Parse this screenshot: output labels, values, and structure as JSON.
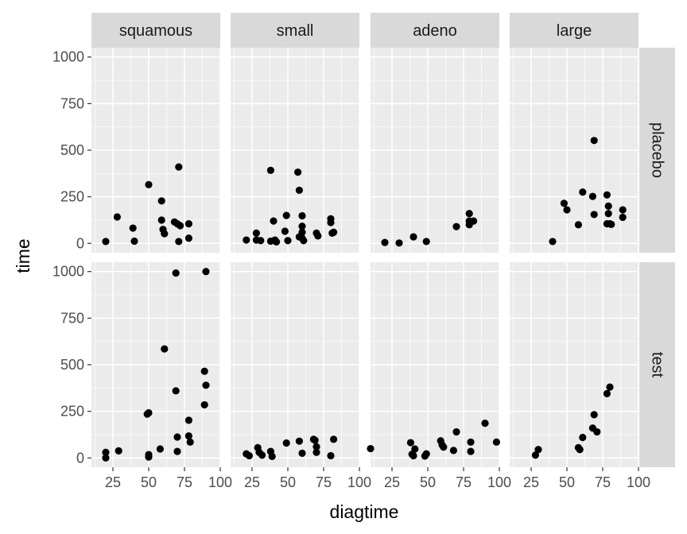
{
  "chart_data": {
    "type": "scatter",
    "xlabel": "diagtime",
    "ylabel": "time",
    "xlim": [
      10,
      100
    ],
    "ylim": [
      -50,
      1050
    ],
    "x_ticks": [
      25,
      50,
      75,
      100
    ],
    "y_ticks": [
      0,
      250,
      500,
      750,
      1000
    ],
    "grid": true,
    "colors": {
      "panel_bg": "#ebebeb",
      "strip_bg": "#d9d9d9",
      "grid": "#ffffff",
      "point": "#000000"
    },
    "column_facets": [
      "squamous",
      "small",
      "adeno",
      "large"
    ],
    "row_facets": [
      "placebo",
      "test"
    ],
    "panels": [
      {
        "col": "squamous",
        "row": "placebo",
        "points": [
          {
            "x": 20,
            "y": 10
          },
          {
            "x": 28,
            "y": 142
          },
          {
            "x": 39,
            "y": 82
          },
          {
            "x": 40,
            "y": 12
          },
          {
            "x": 50,
            "y": 315
          },
          {
            "x": 59,
            "y": 228
          },
          {
            "x": 59,
            "y": 125
          },
          {
            "x": 60,
            "y": 75
          },
          {
            "x": 61,
            "y": 52
          },
          {
            "x": 68,
            "y": 115
          },
          {
            "x": 70,
            "y": 105
          },
          {
            "x": 71,
            "y": 410
          },
          {
            "x": 71,
            "y": 10
          },
          {
            "x": 72,
            "y": 95
          },
          {
            "x": 78,
            "y": 105
          },
          {
            "x": 78,
            "y": 28
          }
        ]
      },
      {
        "col": "small",
        "row": "placebo",
        "points": [
          {
            "x": 21,
            "y": 18
          },
          {
            "x": 28,
            "y": 55
          },
          {
            "x": 28,
            "y": 18
          },
          {
            "x": 31,
            "y": 15
          },
          {
            "x": 38,
            "y": 392
          },
          {
            "x": 38,
            "y": 12
          },
          {
            "x": 40,
            "y": 120
          },
          {
            "x": 41,
            "y": 18
          },
          {
            "x": 42,
            "y": 8
          },
          {
            "x": 48,
            "y": 65
          },
          {
            "x": 49,
            "y": 150
          },
          {
            "x": 50,
            "y": 15
          },
          {
            "x": 57,
            "y": 382
          },
          {
            "x": 58,
            "y": 285
          },
          {
            "x": 58,
            "y": 35
          },
          {
            "x": 60,
            "y": 148
          },
          {
            "x": 60,
            "y": 92
          },
          {
            "x": 60,
            "y": 60
          },
          {
            "x": 60,
            "y": 28
          },
          {
            "x": 61,
            "y": 15
          },
          {
            "x": 70,
            "y": 55
          },
          {
            "x": 71,
            "y": 40
          },
          {
            "x": 80,
            "y": 132
          },
          {
            "x": 80,
            "y": 112
          },
          {
            "x": 81,
            "y": 55
          },
          {
            "x": 82,
            "y": 60
          }
        ]
      },
      {
        "col": "adeno",
        "row": "placebo",
        "points": [
          {
            "x": 20,
            "y": 5
          },
          {
            "x": 30,
            "y": 2
          },
          {
            "x": 40,
            "y": 35
          },
          {
            "x": 49,
            "y": 10
          },
          {
            "x": 70,
            "y": 90
          },
          {
            "x": 79,
            "y": 160
          },
          {
            "x": 79,
            "y": 120
          },
          {
            "x": 79,
            "y": 100
          },
          {
            "x": 82,
            "y": 120
          }
        ]
      },
      {
        "col": "large",
        "row": "placebo",
        "points": [
          {
            "x": 40,
            "y": 10
          },
          {
            "x": 48,
            "y": 215
          },
          {
            "x": 50,
            "y": 180
          },
          {
            "x": 58,
            "y": 100
          },
          {
            "x": 61,
            "y": 275
          },
          {
            "x": 68,
            "y": 252
          },
          {
            "x": 69,
            "y": 552
          },
          {
            "x": 69,
            "y": 155
          },
          {
            "x": 78,
            "y": 260
          },
          {
            "x": 78,
            "y": 105
          },
          {
            "x": 79,
            "y": 200
          },
          {
            "x": 79,
            "y": 160
          },
          {
            "x": 80,
            "y": 105
          },
          {
            "x": 81,
            "y": 102
          },
          {
            "x": 89,
            "y": 180
          },
          {
            "x": 89,
            "y": 140
          }
        ]
      },
      {
        "col": "squamous",
        "row": "test",
        "points": [
          {
            "x": 20,
            "y": 30
          },
          {
            "x": 20,
            "y": 0
          },
          {
            "x": 29,
            "y": 38
          },
          {
            "x": 49,
            "y": 235
          },
          {
            "x": 50,
            "y": 242
          },
          {
            "x": 50,
            "y": 18
          },
          {
            "x": 50,
            "y": 5
          },
          {
            "x": 58,
            "y": 48
          },
          {
            "x": 61,
            "y": 585
          },
          {
            "x": 69,
            "y": 992
          },
          {
            "x": 69,
            "y": 360
          },
          {
            "x": 70,
            "y": 112
          },
          {
            "x": 70,
            "y": 35
          },
          {
            "x": 78,
            "y": 202
          },
          {
            "x": 78,
            "y": 118
          },
          {
            "x": 79,
            "y": 85
          },
          {
            "x": 89,
            "y": 465
          },
          {
            "x": 89,
            "y": 285
          },
          {
            "x": 90,
            "y": 1000
          },
          {
            "x": 90,
            "y": 390
          }
        ]
      },
      {
        "col": "small",
        "row": "test",
        "points": [
          {
            "x": 21,
            "y": 22
          },
          {
            "x": 23,
            "y": 12
          },
          {
            "x": 29,
            "y": 55
          },
          {
            "x": 30,
            "y": 30
          },
          {
            "x": 32,
            "y": 15
          },
          {
            "x": 38,
            "y": 35
          },
          {
            "x": 39,
            "y": 8
          },
          {
            "x": 49,
            "y": 80
          },
          {
            "x": 58,
            "y": 90
          },
          {
            "x": 60,
            "y": 25
          },
          {
            "x": 68,
            "y": 100
          },
          {
            "x": 69,
            "y": 95
          },
          {
            "x": 70,
            "y": 60
          },
          {
            "x": 70,
            "y": 30
          },
          {
            "x": 80,
            "y": 12
          },
          {
            "x": 82,
            "y": 100
          }
        ]
      },
      {
        "col": "adeno",
        "row": "test",
        "points": [
          {
            "x": 10,
            "y": 50
          },
          {
            "x": 38,
            "y": 82
          },
          {
            "x": 39,
            "y": 20
          },
          {
            "x": 40,
            "y": 12
          },
          {
            "x": 41,
            "y": 48
          },
          {
            "x": 48,
            "y": 10
          },
          {
            "x": 49,
            "y": 22
          },
          {
            "x": 59,
            "y": 92
          },
          {
            "x": 60,
            "y": 70
          },
          {
            "x": 61,
            "y": 58
          },
          {
            "x": 68,
            "y": 40
          },
          {
            "x": 70,
            "y": 140
          },
          {
            "x": 80,
            "y": 85
          },
          {
            "x": 80,
            "y": 35
          },
          {
            "x": 90,
            "y": 186
          },
          {
            "x": 98,
            "y": 85
          }
        ]
      },
      {
        "col": "large",
        "row": "test",
        "points": [
          {
            "x": 28,
            "y": 15
          },
          {
            "x": 30,
            "y": 45
          },
          {
            "x": 58,
            "y": 55
          },
          {
            "x": 59,
            "y": 45
          },
          {
            "x": 61,
            "y": 110
          },
          {
            "x": 68,
            "y": 160
          },
          {
            "x": 69,
            "y": 232
          },
          {
            "x": 71,
            "y": 140
          },
          {
            "x": 78,
            "y": 345
          },
          {
            "x": 80,
            "y": 380
          }
        ]
      }
    ]
  }
}
